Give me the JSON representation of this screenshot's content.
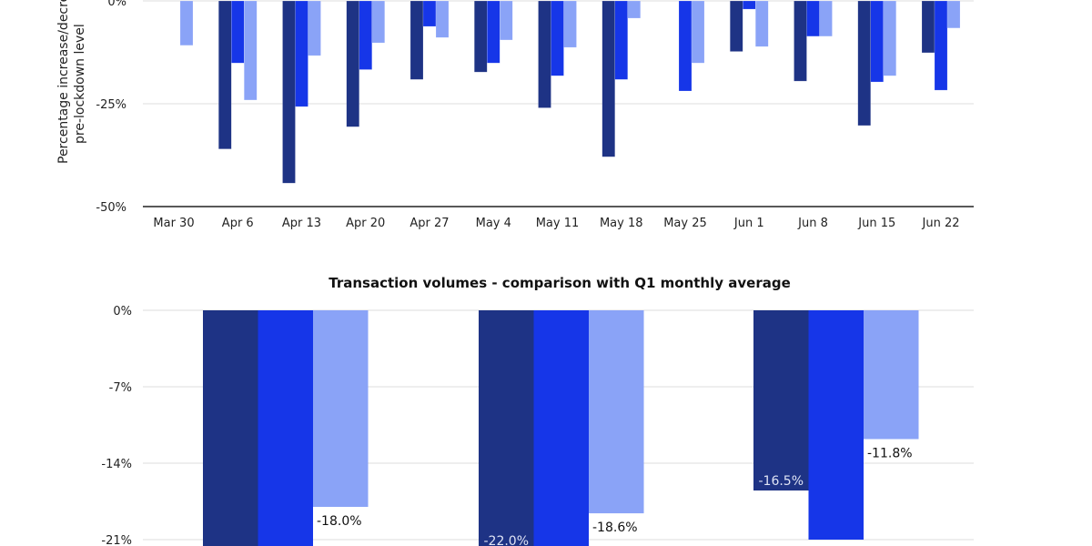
{
  "chart_data": [
    {
      "type": "bar",
      "title": "",
      "ylabel_lines": [
        "Percentage increase/decrease",
        "pre-lockdown level"
      ],
      "xlabel": "",
      "ylim": [
        -50,
        0
      ],
      "yticks": [
        "0%",
        "-25%",
        "-50%"
      ],
      "ytick_values": [
        0,
        -25,
        -50
      ],
      "grid": true,
      "categories": [
        "Mar 30",
        "Apr 6",
        "Apr 13",
        "Apr 20",
        "Apr 27",
        "May 4",
        "May 11",
        "May 18",
        "May 25",
        "Jun 1",
        "Jun 8",
        "Jun 15",
        "Jun 22"
      ],
      "series": [
        {
          "color": "#1e3385",
          "values": [
            null,
            -36.0,
            -44.3,
            -30.6,
            -19.1,
            -17.3,
            -26.0,
            -37.9,
            null,
            -12.3,
            -19.5,
            -30.3,
            -12.6
          ]
        },
        {
          "color": "#1636e8",
          "values": [
            null,
            -15.1,
            -25.7,
            -16.7,
            -6.2,
            -15.1,
            -18.2,
            -19.1,
            -21.9,
            -2.0,
            -8.6,
            -19.7,
            -21.7
          ]
        },
        {
          "color": "#8aa3f7",
          "values": [
            -10.8,
            -24.1,
            -13.3,
            -10.2,
            -8.9,
            -9.5,
            -11.3,
            -4.2,
            -15.1,
            -11.1,
            -8.6,
            -18.2,
            -6.6
          ]
        }
      ]
    },
    {
      "type": "bar",
      "title": "Transaction volumes - comparison with Q1 monthly average",
      "xlabel": "",
      "ylabel": "",
      "ylim": [
        -21,
        0
      ],
      "yticks": [
        "0%",
        "-7%",
        "-14%",
        "-21%"
      ],
      "ytick_values": [
        0,
        -7,
        -14,
        -21
      ],
      "grid": true,
      "categories": [
        "",
        "",
        ""
      ],
      "series": [
        {
          "color": "#1e3385",
          "values": [
            null,
            -22.0,
            -16.5
          ],
          "labels": [
            "",
            "-22.0%",
            "-16.5%"
          ]
        },
        {
          "color": "#1636e8",
          "values": [
            null,
            null,
            -21.0
          ],
          "labels": [
            "",
            "",
            ""
          ]
        },
        {
          "color": "#8aa3f7",
          "values": [
            -18.0,
            -18.6,
            -11.8
          ],
          "labels": [
            "-18.0%",
            "-18.6%",
            "-11.8%"
          ]
        }
      ]
    }
  ]
}
